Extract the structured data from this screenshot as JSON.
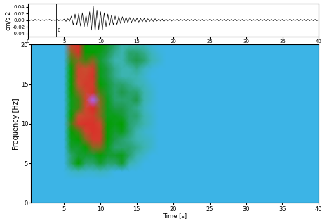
{
  "chart_data": [
    {
      "type": "line",
      "y_label": "cm/s-2",
      "xlim": [
        0,
        40
      ],
      "xticks": [
        0,
        5,
        10,
        15,
        20,
        25,
        30,
        35,
        40
      ],
      "ylim": [
        -0.05,
        0.05
      ],
      "yticks": [
        -0.04,
        -0.02,
        {
          "value": 0,
          "label": "0.00"
        },
        0.02,
        0.04
      ],
      "marker_line": {
        "x": 3.9,
        "text": "0"
      },
      "x_step": 0.25,
      "series": [
        {
          "color": "#000000",
          "line_style": "solid",
          "values": [
            0.002,
            -0.002,
            0.001,
            -0.002,
            0.002,
            -0.001,
            0.002,
            -0.002,
            0.001,
            -0.002,
            0.002,
            -0.001,
            0.002,
            -0.002,
            0.001,
            -0.002,
            0.002,
            -0.002,
            0.001,
            -0.002,
            0.003,
            -0.004,
            0.004,
            -0.003,
            0.012,
            -0.015,
            0.018,
            -0.014,
            0.02,
            -0.018,
            0.022,
            -0.02,
            0.015,
            -0.02,
            0.025,
            -0.03,
            0.042,
            -0.035,
            0.03,
            -0.028,
            0.025,
            -0.03,
            0.022,
            -0.02,
            0.018,
            -0.016,
            0.015,
            -0.014,
            0.012,
            -0.013,
            0.011,
            -0.01,
            0.01,
            -0.009,
            0.009,
            -0.008,
            0.008,
            -0.007,
            0.007,
            -0.006,
            0.006,
            -0.006,
            0.005,
            -0.005,
            0.005,
            -0.005,
            0.004,
            -0.004,
            0.004,
            -0.004,
            0.004,
            -0.003,
            0.003,
            -0.003,
            0.003,
            -0.003,
            0.003,
            -0.003,
            0.002,
            -0.003,
            0.002,
            -0.002,
            0.002,
            -0.002,
            0.002,
            -0.002,
            0.002,
            -0.002,
            0.002,
            -0.002,
            0.002,
            -0.002,
            0.002,
            -0.002,
            0.002,
            -0.002,
            0.002,
            -0.002,
            0.002,
            -0.002,
            0.002,
            -0.002,
            0.002,
            -0.002,
            0.002,
            -0.002,
            0.002,
            -0.002,
            0.002,
            -0.002,
            0.002,
            -0.002,
            0.002,
            -0.002,
            0.002,
            -0.002,
            0.002,
            -0.002,
            0.002,
            -0.002,
            0.002,
            -0.002,
            0.002,
            -0.002,
            0.002,
            -0.002,
            0.002,
            -0.002,
            0.002,
            -0.002,
            0.002,
            -0.002,
            0.002,
            -0.002,
            0.002,
            -0.002,
            0.002,
            -0.002,
            0.002,
            -0.002,
            0.002,
            -0.002,
            0.002,
            -0.002,
            0.002,
            -0.002,
            0.002,
            -0.002,
            0.002,
            -0.002,
            0.002,
            -0.002,
            0.002,
            -0.002,
            0.002,
            -0.002,
            0.002,
            -0.002,
            0.002,
            -0.002,
            0.001
          ]
        }
      ]
    },
    {
      "type": "heatmap",
      "x_label": "Time [s]",
      "y_label": "Frequency [Hz]",
      "xlim": [
        0.5,
        40
      ],
      "xticks": [
        5,
        10,
        15,
        20,
        25,
        30,
        35,
        40
      ],
      "ylim": [
        0,
        20
      ],
      "yticks": [
        0,
        5,
        10,
        15,
        20
      ],
      "x": [
        1,
        2,
        3,
        4,
        5,
        6,
        7,
        8,
        9,
        10,
        11,
        12,
        13,
        14,
        15,
        16,
        17,
        18,
        19,
        20,
        21,
        22,
        23,
        24,
        25,
        26,
        27,
        28,
        29,
        30,
        31,
        32,
        33,
        34,
        35,
        36,
        37,
        38,
        39,
        40
      ],
      "y": [
        0,
        1,
        2,
        3,
        4,
        5,
        6,
        7,
        8,
        9,
        10,
        11,
        12,
        13,
        14,
        15,
        16,
        17,
        18,
        19,
        20
      ],
      "cells": [
        [
          0,
          0,
          0,
          0,
          0,
          0,
          0,
          0,
          0,
          0,
          0,
          0,
          0,
          0,
          0,
          0,
          0,
          0,
          0,
          0,
          0,
          0,
          0,
          0,
          0,
          0,
          0,
          0,
          0,
          0,
          0,
          0,
          0,
          0,
          0,
          0,
          0,
          0,
          0,
          0
        ],
        [
          0,
          0,
          0,
          0,
          0,
          0,
          0,
          0,
          0,
          0,
          0,
          0,
          0,
          0,
          0,
          0,
          0,
          0,
          0,
          0,
          0,
          0,
          0,
          0,
          0,
          0,
          0,
          0,
          0,
          0,
          0,
          0,
          0,
          0,
          0,
          0,
          0,
          0,
          0,
          0
        ],
        [
          0,
          0,
          0,
          0,
          0,
          0,
          0,
          0,
          0,
          0,
          0,
          0,
          0,
          0,
          0,
          0,
          0,
          0,
          0,
          0,
          0,
          0,
          0,
          0,
          0,
          0,
          0,
          0,
          0,
          0,
          0,
          0,
          0,
          0,
          0,
          0,
          0,
          0,
          0,
          0
        ],
        [
          0,
          0,
          0,
          0,
          0,
          0,
          0,
          0,
          0,
          0,
          0,
          0,
          0,
          0,
          0,
          0,
          0,
          0,
          0,
          0,
          0,
          0,
          0,
          0,
          0,
          0,
          0,
          0,
          0,
          0,
          0,
          0,
          0,
          0,
          0,
          0,
          0,
          0,
          0,
          0
        ],
        [
          0,
          0,
          0,
          0,
          0,
          0.1,
          0.15,
          0.1,
          0.1,
          0.15,
          0.1,
          0,
          0,
          0,
          0,
          0,
          0,
          0,
          0,
          0,
          0,
          0,
          0,
          0,
          0,
          0,
          0,
          0,
          0,
          0,
          0,
          0,
          0,
          0,
          0,
          0,
          0,
          0,
          0,
          0
        ],
        [
          0,
          0,
          0,
          0,
          0,
          0.3,
          0.5,
          0.3,
          0.3,
          0.4,
          0.3,
          0.3,
          0.4,
          0.2,
          0.1,
          0,
          0,
          0,
          0,
          0,
          0,
          0,
          0,
          0,
          0,
          0,
          0,
          0,
          0,
          0,
          0,
          0,
          0,
          0,
          0,
          0,
          0,
          0,
          0,
          0
        ],
        [
          0,
          0,
          0,
          0,
          0,
          0.3,
          0.4,
          0.4,
          0.4,
          0.5,
          0.4,
          0.4,
          0.45,
          0.3,
          0.2,
          0.1,
          0,
          0,
          0,
          0,
          0,
          0,
          0,
          0,
          0,
          0,
          0,
          0,
          0,
          0,
          0,
          0,
          0,
          0,
          0,
          0,
          0,
          0,
          0,
          0
        ],
        [
          0,
          0,
          0,
          0,
          0,
          0.4,
          0.4,
          0.5,
          0.6,
          0.6,
          0.45,
          0.3,
          0.3,
          0.3,
          0.25,
          0.2,
          0.1,
          0,
          0,
          0,
          0,
          0,
          0,
          0,
          0,
          0,
          0,
          0,
          0,
          0,
          0,
          0,
          0,
          0,
          0,
          0,
          0,
          0,
          0,
          0
        ],
        [
          0,
          0,
          0,
          0,
          0,
          0.45,
          0.5,
          0.6,
          0.75,
          0.75,
          0.5,
          0.35,
          0.3,
          0.25,
          0.2,
          0.15,
          0.1,
          0,
          0,
          0,
          0,
          0,
          0,
          0,
          0,
          0,
          0,
          0,
          0,
          0,
          0,
          0,
          0,
          0,
          0,
          0,
          0,
          0,
          0,
          0
        ],
        [
          0,
          0,
          0,
          0,
          0,
          0.5,
          0.55,
          0.7,
          0.8,
          0.75,
          0.5,
          0.4,
          0.45,
          0.3,
          0.2,
          0.1,
          0.05,
          0,
          0,
          0,
          0,
          0,
          0,
          0,
          0,
          0,
          0,
          0,
          0,
          0,
          0,
          0,
          0,
          0,
          0,
          0,
          0,
          0,
          0,
          0
        ],
        [
          0,
          0,
          0,
          0,
          0,
          0.55,
          0.75,
          0.8,
          0.8,
          0.7,
          0.5,
          0.45,
          0.5,
          0.3,
          0.25,
          0.2,
          0.1,
          0,
          0,
          0,
          0,
          0,
          0,
          0,
          0,
          0,
          0,
          0,
          0,
          0,
          0,
          0,
          0,
          0,
          0,
          0,
          0,
          0,
          0,
          0
        ],
        [
          0,
          0,
          0,
          0,
          0,
          0.5,
          0.65,
          0.7,
          0.75,
          0.6,
          0.45,
          0.45,
          0.4,
          0.3,
          0.3,
          0.2,
          0.1,
          0,
          0,
          0,
          0,
          0,
          0,
          0,
          0,
          0,
          0,
          0,
          0,
          0,
          0,
          0,
          0,
          0,
          0,
          0,
          0,
          0,
          0,
          0
        ],
        [
          0,
          0,
          0,
          0,
          0,
          0.45,
          0.55,
          0.7,
          0.85,
          0.6,
          0.45,
          0.35,
          0.35,
          0.3,
          0.25,
          0.15,
          0.05,
          0,
          0,
          0,
          0,
          0,
          0,
          0,
          0,
          0,
          0,
          0,
          0,
          0,
          0,
          0,
          0,
          0,
          0,
          0,
          0,
          0,
          0,
          0
        ],
        [
          0,
          0,
          0,
          0,
          0,
          0.45,
          0.55,
          0.7,
          1.0,
          0.6,
          0.45,
          0.3,
          0.3,
          0.3,
          0.35,
          0.2,
          0.1,
          0,
          0,
          0,
          0,
          0,
          0,
          0,
          0,
          0,
          0,
          0,
          0,
          0,
          0,
          0,
          0,
          0,
          0,
          0,
          0,
          0,
          0,
          0
        ],
        [
          0,
          0,
          0,
          0,
          0,
          0.5,
          0.6,
          0.7,
          0.8,
          0.55,
          0.4,
          0.3,
          0.35,
          0.3,
          0.3,
          0.2,
          0.1,
          0,
          0,
          0,
          0,
          0,
          0,
          0,
          0,
          0,
          0,
          0,
          0,
          0,
          0,
          0,
          0,
          0,
          0,
          0,
          0,
          0,
          0,
          0
        ],
        [
          0,
          0,
          0,
          0,
          0,
          0.5,
          0.65,
          0.75,
          0.75,
          0.5,
          0.4,
          0.3,
          0.3,
          0.25,
          0.2,
          0.15,
          0.05,
          0,
          0,
          0,
          0,
          0,
          0,
          0,
          0,
          0,
          0,
          0,
          0,
          0,
          0,
          0,
          0,
          0,
          0,
          0,
          0,
          0,
          0,
          0
        ],
        [
          0,
          0,
          0,
          0,
          0,
          0.5,
          0.7,
          0.7,
          0.8,
          0.45,
          0.35,
          0.25,
          0.2,
          0.2,
          0.2,
          0.1,
          0,
          0,
          0,
          0,
          0,
          0,
          0,
          0,
          0,
          0,
          0,
          0,
          0,
          0,
          0,
          0,
          0,
          0,
          0,
          0,
          0,
          0,
          0,
          0
        ],
        [
          0,
          0,
          0,
          0,
          0,
          0.5,
          0.7,
          0.65,
          0.75,
          0.45,
          0.35,
          0.25,
          0.2,
          0.2,
          0.25,
          0.15,
          0.05,
          0,
          0,
          0,
          0,
          0,
          0,
          0,
          0,
          0,
          0,
          0,
          0,
          0,
          0,
          0,
          0,
          0,
          0,
          0,
          0,
          0,
          0,
          0
        ],
        [
          0,
          0,
          0,
          0,
          0,
          0.55,
          0.6,
          0.55,
          0.6,
          0.4,
          0.3,
          0.2,
          0.2,
          0.3,
          0.35,
          0.3,
          0.2,
          0.1,
          0,
          0,
          0,
          0,
          0,
          0,
          0,
          0,
          0,
          0,
          0,
          0,
          0,
          0,
          0,
          0,
          0,
          0,
          0,
          0,
          0,
          0
        ],
        [
          0,
          0,
          0,
          0,
          0,
          0.6,
          0.8,
          0.5,
          0.5,
          0.45,
          0.35,
          0.25,
          0.2,
          0.3,
          0.3,
          0.25,
          0.15,
          0.05,
          0,
          0,
          0,
          0,
          0,
          0,
          0,
          0,
          0,
          0,
          0,
          0,
          0,
          0,
          0,
          0,
          0,
          0,
          0,
          0,
          0,
          0
        ],
        [
          0,
          0,
          0,
          0,
          0,
          0.7,
          0.8,
          0.5,
          0.45,
          0.5,
          0.4,
          0.3,
          0.2,
          0.2,
          0.2,
          0.15,
          0.05,
          0,
          0,
          0,
          0,
          0,
          0,
          0,
          0,
          0,
          0,
          0,
          0,
          0,
          0,
          0,
          0,
          0,
          0,
          0,
          0,
          0,
          0,
          0
        ]
      ]
    }
  ]
}
